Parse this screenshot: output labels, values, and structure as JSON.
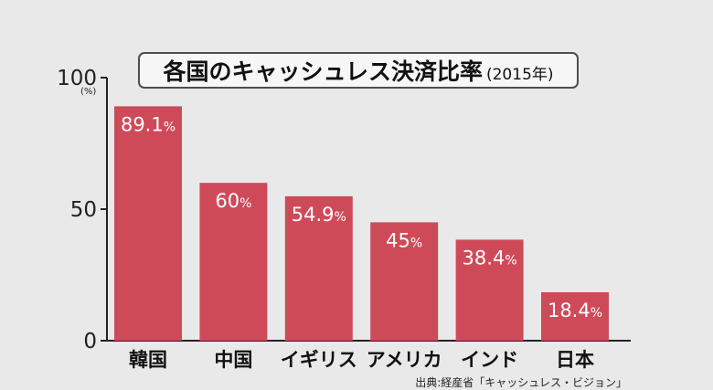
{
  "title": {
    "main": "各国のキャッシュレス決済比率",
    "sub": "(2015年)"
  },
  "source": "出典:経産省「キャッシュレス・ビジョン」",
  "y_unit": "(%)",
  "colors": {
    "background": "#e9e9ea",
    "bar": "#cf4a59",
    "axis": "#222222",
    "label_text": "#ffffff"
  },
  "chart_data": {
    "type": "bar",
    "title": "各国のキャッシュレス決済比率",
    "subtitle": "(2015年)",
    "categories": [
      "韓国",
      "中国",
      "イギリス",
      "アメリカ",
      "インド",
      "日本"
    ],
    "values": [
      89.1,
      60,
      54.9,
      45,
      38.4,
      18.4
    ],
    "data_labels": [
      "89.1%",
      "60%",
      "54.9%",
      "45%",
      "38.4%",
      "18.4%"
    ],
    "yticks": [
      "0",
      "50",
      "100"
    ],
    "y_unit": "(%)",
    "xlabel": "",
    "ylabel": "",
    "ylim": [
      0,
      100
    ],
    "grid": false,
    "legend": "none"
  }
}
